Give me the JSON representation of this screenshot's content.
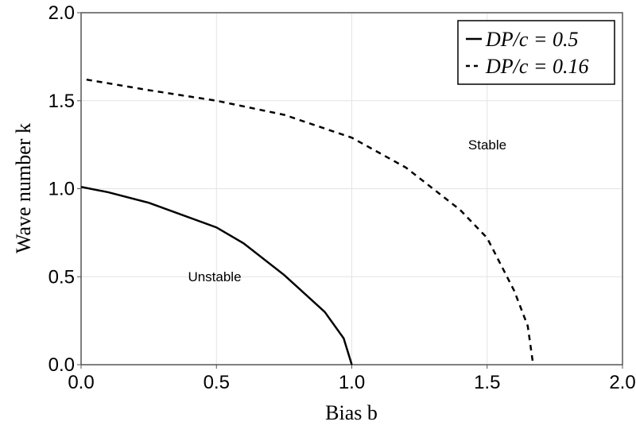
{
  "chart_data": {
    "type": "line",
    "xlabel": "Bias b",
    "ylabel": "Wave number k",
    "xlim": [
      0,
      2
    ],
    "ylim": [
      0,
      2
    ],
    "xticks": [
      {
        "value": 0,
        "label": "0.0"
      },
      0.5,
      {
        "value": 1,
        "label": "1.0"
      },
      1.5,
      {
        "value": 2,
        "label": "2.0"
      }
    ],
    "yticks": [
      {
        "value": 0,
        "label": "0.0"
      },
      0.5,
      {
        "value": 1,
        "label": "1.0"
      },
      1.5,
      {
        "value": 2,
        "label": "2.0"
      }
    ],
    "grid": true,
    "legend": "upper right",
    "annotations": [
      "Unstable",
      "Stable"
    ],
    "series": [
      {
        "name": "DP/c = 0.5",
        "color": "#000000",
        "dash": false,
        "x": [
          0,
          0.1,
          0.25,
          0.5,
          0.6,
          0.75,
          0.9,
          0.97,
          1.0
        ],
        "values": [
          1.01,
          0.98,
          0.92,
          0.78,
          0.69,
          0.51,
          0.3,
          0.15,
          0
        ]
      },
      {
        "name": "DP/c = 0.16",
        "color": "#000000",
        "dash": true,
        "x": [
          0.02,
          0.25,
          0.5,
          0.75,
          1.0,
          1.2,
          1.4,
          1.5,
          1.6,
          1.65,
          1.67
        ],
        "values": [
          1.62,
          1.56,
          1.5,
          1.42,
          1.29,
          1.12,
          0.88,
          0.72,
          0.42,
          0.22,
          0
        ]
      }
    ]
  }
}
